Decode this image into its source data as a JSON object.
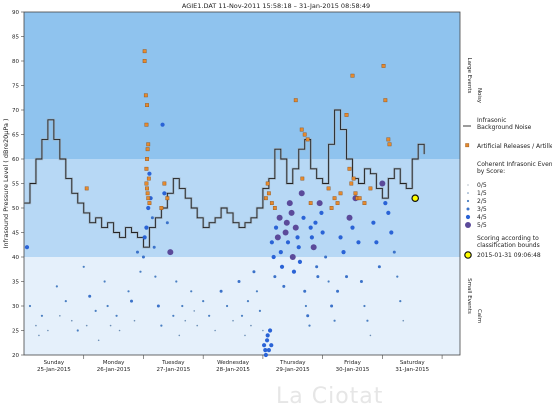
{
  "chart_data": {
    "type": "line",
    "title": "AGIE1.DAT    11-Nov-2011 15:58:18   –   31-Jan-2015 08:58:49",
    "ylabel": "Infrasound Pressure Level   ( dBre20µPa )",
    "ylim": [
      20,
      90
    ],
    "xlim": [
      0,
      7.3
    ],
    "yticks": [
      20,
      25,
      30,
      35,
      40,
      45,
      50,
      55,
      60,
      65,
      70,
      75,
      80,
      85,
      90
    ],
    "day_labels": [
      {
        "day": "Sunday",
        "date": "25-Jan-2015",
        "x": 0.5
      },
      {
        "day": "Monday",
        "date": "26-Jan-2015",
        "x": 1.5
      },
      {
        "day": "Tuesday",
        "date": "27-Jan-2015",
        "x": 2.5
      },
      {
        "day": "Wednesday",
        "date": "28-Jan-2015",
        "x": 3.5
      },
      {
        "day": "Thursday",
        "date": "29-Jan-2015",
        "x": 4.5
      },
      {
        "day": "Friday",
        "date": "30-Jan-2015",
        "x": 5.5
      },
      {
        "day": "Saturday",
        "date": "31-Jan-2015",
        "x": 6.5
      }
    ],
    "bands": [
      {
        "from": 60,
        "to": 90,
        "color": "#8fc3ee"
      },
      {
        "from": 40,
        "to": 60,
        "color": "#b7d8f5"
      },
      {
        "from": 20,
        "to": 40,
        "color": "#e5f0fb"
      }
    ],
    "band_labels": [
      {
        "top": "Large Events",
        "bottom": "Noisy",
        "from": 60,
        "to": 90
      },
      {
        "top": "Small Events",
        "bottom": "Calm",
        "from": 20,
        "to": 40
      }
    ],
    "background_noise": {
      "name": "Infrasonic Background Noise",
      "x": [
        0,
        0.1,
        0.2,
        0.3,
        0.4,
        0.5,
        0.6,
        0.7,
        0.8,
        0.9,
        1.0,
        1.1,
        1.2,
        1.3,
        1.4,
        1.5,
        1.6,
        1.7,
        1.8,
        1.9,
        2.0,
        2.1,
        2.2,
        2.3,
        2.4,
        2.5,
        2.6,
        2.7,
        2.8,
        2.9,
        3.0,
        3.1,
        3.2,
        3.3,
        3.4,
        3.5,
        3.6,
        3.7,
        3.8,
        3.9,
        4.0,
        4.1,
        4.2,
        4.3,
        4.4,
        4.5,
        4.6,
        4.7,
        4.8,
        4.9,
        5.0,
        5.1,
        5.2,
        5.3,
        5.4,
        5.5,
        5.6,
        5.7,
        5.8,
        5.9,
        6.0,
        6.1,
        6.2,
        6.3,
        6.4,
        6.5,
        6.6,
        6.7
      ],
      "y": [
        51,
        55,
        60,
        64,
        68,
        64,
        60,
        56,
        53,
        51,
        49,
        47,
        48,
        46,
        47,
        45,
        44,
        46,
        45,
        44,
        42,
        46,
        48,
        50,
        53,
        56,
        54,
        52,
        50,
        48,
        46,
        47,
        48,
        50,
        49,
        47,
        46,
        47,
        48,
        50,
        54,
        56,
        62,
        60,
        55,
        58,
        62,
        64,
        58,
        56,
        55,
        63,
        70,
        66,
        60,
        56,
        55,
        58,
        57,
        54,
        52,
        56,
        58,
        55,
        54,
        60,
        63,
        61
      ]
    },
    "releases": {
      "name": "Artificial Releases / Artillery",
      "x": [
        1.05,
        2.02,
        2.02,
        2.04,
        2.06,
        2.05,
        2.08,
        2.07,
        2.06,
        2.05,
        2.09,
        2.05,
        2.06,
        2.07,
        2.08,
        2.1,
        2.35,
        2.4,
        2.3,
        4.05,
        4.1,
        4.08,
        4.15,
        4.2,
        4.55,
        4.65,
        4.7,
        4.75,
        4.66,
        4.8,
        5.1,
        5.2,
        5.15,
        5.3,
        5.25,
        5.4,
        5.5,
        5.45,
        5.52,
        5.48,
        5.55,
        5.58,
        5.62,
        5.7,
        5.8,
        6.02,
        6.05,
        6.1,
        6.12
      ],
      "y": [
        54,
        82,
        80,
        73,
        71,
        67,
        63,
        62,
        60,
        58,
        56,
        55,
        54,
        53,
        52,
        51,
        55,
        52,
        50,
        52,
        53,
        55,
        51,
        50,
        72,
        66,
        65,
        64,
        56,
        51,
        54,
        52,
        50,
        53,
        51,
        69,
        77,
        58,
        56,
        55,
        53,
        52,
        52,
        51,
        54,
        79,
        72,
        64,
        63
      ]
    },
    "events": {
      "name": "Coherent Infrasonic Events, by Score:",
      "legend": [
        "0/5",
        "1/5",
        "2/5",
        "3/5",
        "4/5",
        "5/5"
      ],
      "points": [
        [
          0.05,
          42,
          4
        ],
        [
          0.1,
          30,
          2
        ],
        [
          0.2,
          26,
          1
        ],
        [
          0.25,
          24,
          1
        ],
        [
          0.3,
          28,
          2
        ],
        [
          0.4,
          25,
          1
        ],
        [
          0.55,
          34,
          2
        ],
        [
          0.6,
          28,
          1
        ],
        [
          0.7,
          31,
          2
        ],
        [
          0.8,
          27,
          1
        ],
        [
          0.9,
          25,
          2
        ],
        [
          1.0,
          38,
          2
        ],
        [
          1.05,
          26,
          1
        ],
        [
          1.1,
          32,
          3
        ],
        [
          1.2,
          29,
          2
        ],
        [
          1.25,
          23,
          1
        ],
        [
          1.35,
          35,
          2
        ],
        [
          1.4,
          30,
          2
        ],
        [
          1.45,
          26,
          1
        ],
        [
          1.55,
          28,
          2
        ],
        [
          1.6,
          25,
          1
        ],
        [
          1.75,
          33,
          2
        ],
        [
          1.8,
          31,
          3
        ],
        [
          1.85,
          27,
          1
        ],
        [
          1.9,
          41,
          3
        ],
        [
          1.95,
          37,
          2
        ],
        [
          2.0,
          40,
          3
        ],
        [
          2.02,
          44,
          4
        ],
        [
          2.05,
          46,
          4
        ],
        [
          2.08,
          50,
          4
        ],
        [
          2.1,
          57,
          4
        ],
        [
          2.12,
          52,
          4
        ],
        [
          2.15,
          48,
          3
        ],
        [
          2.18,
          42,
          3
        ],
        [
          2.2,
          36,
          2
        ],
        [
          2.25,
          30,
          3
        ],
        [
          2.3,
          26,
          2
        ],
        [
          2.32,
          67,
          4
        ],
        [
          2.35,
          53,
          4
        ],
        [
          2.4,
          47,
          3
        ],
        [
          2.45,
          41,
          5
        ],
        [
          2.5,
          28,
          2
        ],
        [
          2.55,
          35,
          2
        ],
        [
          2.6,
          24,
          1
        ],
        [
          2.65,
          30,
          2
        ],
        [
          2.7,
          27,
          1
        ],
        [
          2.8,
          33,
          2
        ],
        [
          2.85,
          29,
          1
        ],
        [
          2.9,
          26,
          1
        ],
        [
          3.0,
          31,
          2
        ],
        [
          3.1,
          28,
          2
        ],
        [
          3.2,
          25,
          1
        ],
        [
          3.3,
          33,
          3
        ],
        [
          3.4,
          30,
          2
        ],
        [
          3.5,
          27,
          1
        ],
        [
          3.6,
          35,
          3
        ],
        [
          3.65,
          28,
          2
        ],
        [
          3.7,
          24,
          1
        ],
        [
          3.75,
          31,
          2
        ],
        [
          3.8,
          26,
          1
        ],
        [
          3.85,
          37,
          3
        ],
        [
          3.9,
          33,
          2
        ],
        [
          3.95,
          29,
          2
        ],
        [
          4.0,
          25,
          1
        ],
        [
          4.02,
          22,
          4
        ],
        [
          4.04,
          21,
          4
        ],
        [
          4.05,
          20,
          4
        ],
        [
          4.07,
          23,
          4
        ],
        [
          4.08,
          24,
          4
        ],
        [
          4.1,
          21,
          4
        ],
        [
          4.12,
          25,
          4
        ],
        [
          4.14,
          22,
          4
        ],
        [
          4.15,
          43,
          4
        ],
        [
          4.18,
          40,
          4
        ],
        [
          4.2,
          36,
          3
        ],
        [
          4.22,
          46,
          4
        ],
        [
          4.25,
          44,
          5
        ],
        [
          4.28,
          48,
          5
        ],
        [
          4.3,
          41,
          4
        ],
        [
          4.32,
          38,
          4
        ],
        [
          4.35,
          34,
          3
        ],
        [
          4.38,
          45,
          5
        ],
        [
          4.4,
          47,
          5
        ],
        [
          4.42,
          43,
          4
        ],
        [
          4.45,
          51,
          5
        ],
        [
          4.48,
          49,
          5
        ],
        [
          4.5,
          40,
          5
        ],
        [
          4.52,
          37,
          4
        ],
        [
          4.55,
          46,
          5
        ],
        [
          4.58,
          44,
          4
        ],
        [
          4.6,
          42,
          4
        ],
        [
          4.62,
          39,
          4
        ],
        [
          4.65,
          53,
          5
        ],
        [
          4.68,
          48,
          4
        ],
        [
          4.7,
          33,
          3
        ],
        [
          4.72,
          30,
          2
        ],
        [
          4.75,
          28,
          3
        ],
        [
          4.78,
          26,
          2
        ],
        [
          4.8,
          46,
          4
        ],
        [
          4.82,
          44,
          4
        ],
        [
          4.85,
          42,
          5
        ],
        [
          4.88,
          47,
          4
        ],
        [
          4.9,
          38,
          3
        ],
        [
          4.92,
          36,
          3
        ],
        [
          4.95,
          51,
          5
        ],
        [
          4.98,
          49,
          4
        ],
        [
          5.0,
          45,
          4
        ],
        [
          5.05,
          40,
          3
        ],
        [
          5.1,
          35,
          2
        ],
        [
          5.15,
          30,
          3
        ],
        [
          5.2,
          27,
          2
        ],
        [
          5.25,
          33,
          3
        ],
        [
          5.3,
          44,
          4
        ],
        [
          5.35,
          41,
          4
        ],
        [
          5.4,
          36,
          3
        ],
        [
          5.45,
          48,
          5
        ],
        [
          5.5,
          46,
          4
        ],
        [
          5.55,
          52,
          5
        ],
        [
          5.6,
          43,
          4
        ],
        [
          5.65,
          35,
          3
        ],
        [
          5.7,
          30,
          2
        ],
        [
          5.75,
          27,
          2
        ],
        [
          5.8,
          24,
          1
        ],
        [
          5.85,
          47,
          4
        ],
        [
          5.9,
          43,
          4
        ],
        [
          5.95,
          38,
          3
        ],
        [
          6.0,
          55,
          5
        ],
        [
          6.05,
          51,
          4
        ],
        [
          6.1,
          49,
          4
        ],
        [
          6.15,
          45,
          4
        ],
        [
          6.2,
          41,
          3
        ],
        [
          6.25,
          36,
          2
        ],
        [
          6.3,
          31,
          2
        ],
        [
          6.35,
          27,
          1
        ]
      ]
    },
    "score_marker": {
      "label": "Scoring according to classification bounds",
      "timestamp": "2015-01-31 09:06:48",
      "x": 6.55,
      "y": 52
    }
  }
}
